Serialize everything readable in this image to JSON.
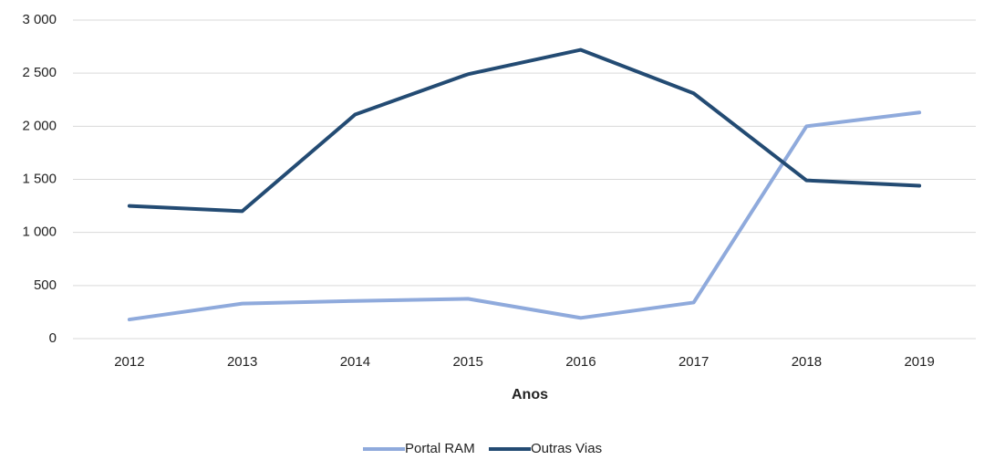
{
  "chart_data": {
    "type": "line",
    "x_label": "Anos",
    "categories": [
      "2012",
      "2013",
      "2014",
      "2015",
      "2016",
      "2017",
      "2018",
      "2019"
    ],
    "series": [
      {
        "name": "Portal RAM",
        "color": "#8faadc",
        "values": [
          180,
          330,
          355,
          375,
          195,
          340,
          2000,
          2130
        ]
      },
      {
        "name": "Outras Vias",
        "color": "#234b73",
        "values": [
          1250,
          1200,
          2110,
          2490,
          2720,
          2310,
          1490,
          1440
        ]
      }
    ],
    "ylim": [
      0,
      3000
    ],
    "yticks": [
      0,
      500,
      {
        "value": 1000,
        "label": "1 000"
      },
      {
        "value": 1500,
        "label": "1 500"
      },
      {
        "value": 2000,
        "label": "2 000"
      },
      {
        "value": 2500,
        "label": "2 500"
      },
      {
        "value": 3000,
        "label": "3 000"
      }
    ],
    "grid": true,
    "legend": "bottom"
  }
}
